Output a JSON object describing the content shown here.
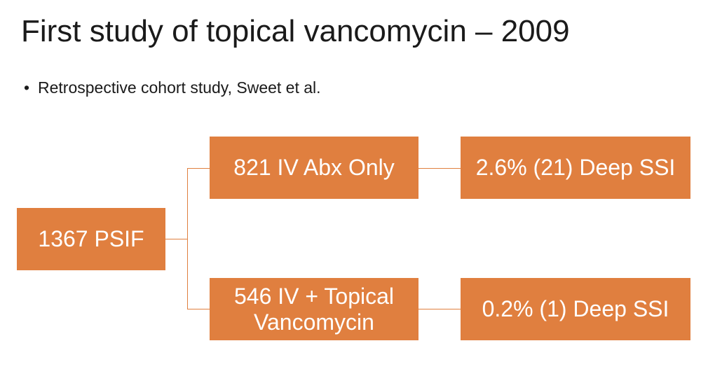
{
  "title": "First study of topical vancomycin – 2009",
  "bullets": [
    "Retrospective cohort study, Sweet et al."
  ],
  "diagram": {
    "root": "1367 PSIF",
    "branches": [
      {
        "group": "821 IV Abx Only",
        "outcome": "2.6% (21) Deep SSI"
      },
      {
        "group": "546 IV + Topical Vancomycin",
        "outcome": "0.2% (1) Deep SSI"
      }
    ]
  },
  "colors": {
    "box_fill": "#e07f3f",
    "box_text": "#ffffff",
    "connector": "#e07f3f"
  }
}
